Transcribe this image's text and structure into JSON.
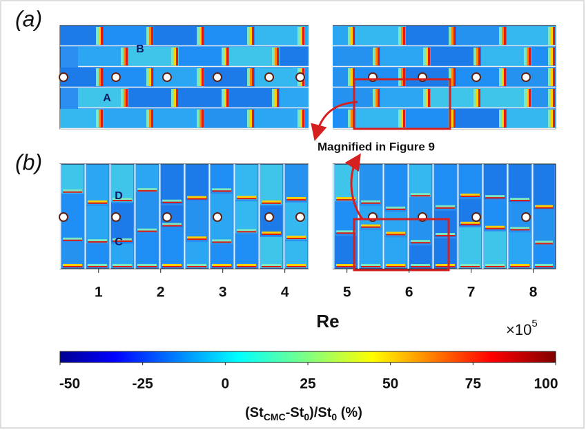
{
  "chart_data": {
    "type": "heatmap",
    "panels": [
      {
        "label": "(a)",
        "regions": [
          "B",
          "A"
        ]
      },
      {
        "label": "(b)",
        "regions": [
          "D",
          "C"
        ]
      }
    ],
    "annotation": "Magnified in Figure 9",
    "xlabel": "Re",
    "x_multiplier": {
      "base": "×10",
      "exponent": "5"
    },
    "xlim": [
      0.38,
      8.36
    ],
    "xticks": [
      1,
      2,
      3,
      4,
      5,
      6,
      7,
      8
    ],
    "colorbar": {
      "colormap": "jet",
      "clim": [
        -50,
        100
      ],
      "ticks": [
        -50,
        -25,
        0,
        25,
        50,
        75,
        100
      ],
      "label": [
        {
          "text": "(St",
          "sub": false
        },
        {
          "text": "CMC",
          "sub": true
        },
        {
          "text": "-St",
          "sub": false
        },
        {
          "text": "0",
          "sub": true
        },
        {
          "text": ")/St",
          "sub": false
        },
        {
          "text": "0",
          "sub": true
        },
        {
          "text": " (%)",
          "sub": false
        }
      ]
    }
  }
}
